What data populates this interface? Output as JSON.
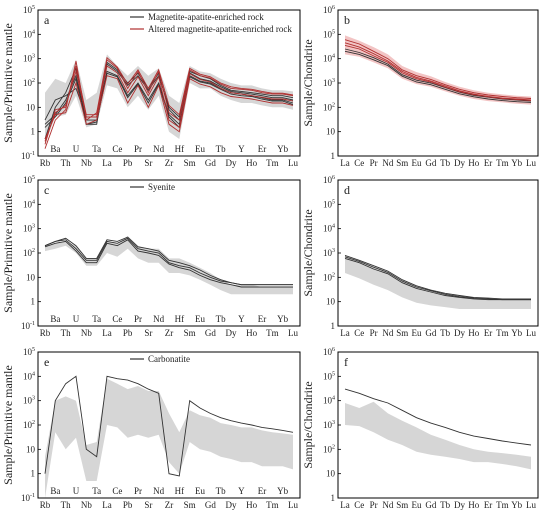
{
  "chart_data": [
    {
      "id": "a",
      "letter": "a",
      "type": "line",
      "scale": "log",
      "ylabel": "Sample/Primitive mantle",
      "ylim_exp": [
        -1,
        5
      ],
      "x_bottom": [
        "Rb",
        "Th",
        "Nb",
        "La",
        "Pb",
        "Sr",
        "Zr",
        "Sm",
        "Gd",
        "Dy",
        "Ho",
        "Tm",
        "Lu"
      ],
      "x_top": [
        "Ba",
        "U",
        "Ta",
        "Ce",
        "Pr",
        "Nd",
        "Hf",
        "Eu",
        "Tb",
        "Y",
        "Er",
        "Yb"
      ],
      "categories": [
        "Rb",
        "Ba",
        "Th",
        "U",
        "Nb",
        "Ta",
        "La",
        "Ce",
        "Pb",
        "Pr",
        "Sr",
        "Nd",
        "Zr",
        "Hf",
        "Sm",
        "Eu",
        "Gd",
        "Tb",
        "Dy",
        "Y",
        "Ho",
        "Er",
        "Tm",
        "Yb",
        "Lu"
      ],
      "band": {
        "lower": [
          0.3,
          4,
          5,
          30,
          1.5,
          2,
          80,
          60,
          10,
          30,
          8,
          30,
          1,
          0.5,
          100,
          60,
          60,
          30,
          20,
          15,
          15,
          12,
          10,
          10,
          8
        ],
        "upper": [
          40,
          150,
          100,
          900,
          20,
          40,
          1500,
          500,
          200,
          500,
          200,
          400,
          30,
          15,
          500,
          300,
          250,
          150,
          100,
          80,
          80,
          60,
          50,
          50,
          45
        ],
        "color": "#d6d6d6"
      },
      "series": [
        {
          "name": "Magnetite-apatite-enriched rock",
          "color": "#333333",
          "values": [
            2,
            5,
            20,
            200,
            3,
            3,
            300,
            200,
            30,
            100,
            20,
            100,
            5,
            2,
            200,
            120,
            100,
            60,
            40,
            35,
            30,
            25,
            20,
            20,
            15
          ]
        },
        {
          "name": "Magnetite-apatite-enriched rock",
          "color": "#333333",
          "values": [
            1.5,
            4,
            15,
            150,
            2,
            2.5,
            250,
            180,
            25,
            90,
            15,
            90,
            4,
            1.5,
            180,
            110,
            90,
            55,
            35,
            30,
            28,
            22,
            18,
            18,
            13
          ]
        },
        {
          "name": "Magnetite-apatite-enriched rock",
          "color": "#333333",
          "values": [
            3,
            20,
            30,
            60,
            4,
            4,
            600,
            300,
            80,
            200,
            50,
            200,
            10,
            4,
            300,
            200,
            150,
            80,
            50,
            45,
            40,
            35,
            30,
            30,
            25
          ]
        },
        {
          "name": "Magnetite-apatite-enriched rock",
          "color": "#333333",
          "values": [
            0.5,
            10,
            40,
            400,
            2,
            2,
            700,
            350,
            100,
            250,
            60,
            250,
            8,
            3,
            260,
            150,
            120,
            70,
            45,
            40,
            35,
            30,
            25,
            25,
            20
          ]
        },
        {
          "name": "Altered magnetite-apatite-enriched rock",
          "color": "#b03030",
          "values": [
            0.3,
            8,
            10,
            500,
            5,
            5,
            900,
            400,
            60,
            300,
            40,
            300,
            6,
            3,
            350,
            200,
            160,
            90,
            60,
            55,
            50,
            40,
            35,
            35,
            30
          ]
        },
        {
          "name": "Altered magnetite-apatite-enriched rock",
          "color": "#b03030",
          "values": [
            0.4,
            6,
            12,
            300,
            4,
            4,
            500,
            260,
            40,
            180,
            30,
            180,
            3,
            1.5,
            240,
            140,
            110,
            60,
            40,
            35,
            30,
            26,
            22,
            22,
            18
          ]
        },
        {
          "name": "Altered magnetite-apatite-enriched rock",
          "color": "#b03030",
          "values": [
            0.2,
            3,
            8,
            800,
            3,
            6,
            1100,
            450,
            90,
            350,
            60,
            350,
            12,
            5,
            400,
            230,
            180,
            100,
            70,
            60,
            55,
            45,
            38,
            38,
            32
          ]
        },
        {
          "name": "Altered magnetite-apatite-enriched rock",
          "color": "#b03030",
          "values": [
            0.5,
            5,
            6,
            100,
            2,
            3,
            200,
            150,
            15,
            80,
            10,
            80,
            2,
            1,
            150,
            90,
            70,
            40,
            28,
            25,
            22,
            18,
            15,
            15,
            12
          ]
        }
      ],
      "legend": [
        {
          "label": "Magnetite-apatite-enriched rock",
          "color": "#333333"
        },
        {
          "label": "Altered magnetite-apatite-enriched rock",
          "color": "#b03030"
        }
      ]
    },
    {
      "id": "b",
      "letter": "b",
      "type": "line",
      "scale": "log",
      "ylabel": "Sample/Chondrite",
      "ylim_exp": [
        0,
        6
      ],
      "x_bottom": [
        "La",
        "Ce",
        "Pr",
        "Nd",
        "Sm",
        "Eu",
        "Gd",
        "Tb",
        "Dy",
        "Ho",
        "Er",
        "Tm",
        "Yb",
        "Lu"
      ],
      "x_top": [],
      "categories": [
        "La",
        "Ce",
        "Pr",
        "Nd",
        "Sm",
        "Eu",
        "Gd",
        "Tb",
        "Dy",
        "Ho",
        "Er",
        "Tm",
        "Yb",
        "Lu"
      ],
      "band": {
        "lower": [
          15000,
          12000,
          7000,
          4000,
          1500,
          900,
          700,
          450,
          300,
          220,
          180,
          160,
          140,
          130
        ],
        "upper": [
          90000,
          55000,
          30000,
          15000,
          5000,
          2800,
          1900,
          1100,
          700,
          500,
          400,
          340,
          300,
          280
        ],
        "color": "#f2c4c4"
      },
      "series": [
        {
          "name": "",
          "color": "#333333",
          "values": [
            25000,
            18000,
            11000,
            6000,
            2200,
            1300,
            1000,
            650,
            420,
            310,
            260,
            220,
            200,
            180
          ]
        },
        {
          "name": "",
          "color": "#333333",
          "values": [
            20000,
            15000,
            9000,
            5200,
            1900,
            1100,
            850,
            550,
            360,
            270,
            220,
            190,
            170,
            160
          ]
        },
        {
          "name": "",
          "color": "#b03030",
          "values": [
            60000,
            40000,
            20000,
            10000,
            3500,
            2000,
            1400,
            850,
            550,
            400,
            320,
            280,
            250,
            230
          ]
        },
        {
          "name": "",
          "color": "#b03030",
          "values": [
            45000,
            30000,
            16000,
            8000,
            3000,
            1700,
            1200,
            750,
            480,
            350,
            280,
            240,
            220,
            200
          ]
        },
        {
          "name": "",
          "color": "#b03030",
          "values": [
            35000,
            25000,
            13000,
            7000,
            2600,
            1500,
            1100,
            680,
            440,
            330,
            270,
            230,
            210,
            190
          ]
        }
      ],
      "legend": []
    },
    {
      "id": "c",
      "letter": "c",
      "type": "line",
      "scale": "log",
      "ylabel": "Sample/Primitive mantle",
      "ylim_exp": [
        -1,
        5
      ],
      "x_bottom": [
        "Rb",
        "Th",
        "Nb",
        "La",
        "Pb",
        "Sr",
        "Zr",
        "Sm",
        "Gd",
        "Dy",
        "Ho",
        "Tm",
        "Lu"
      ],
      "x_top": [
        "Ba",
        "U",
        "Ta",
        "Ce",
        "Pr",
        "Nd",
        "Hf",
        "Eu",
        "Tb",
        "Y",
        "Er",
        "Yb"
      ],
      "categories": [
        "Rb",
        "Ba",
        "Th",
        "U",
        "Nb",
        "Ta",
        "La",
        "Ce",
        "Pb",
        "Pr",
        "Sr",
        "Nd",
        "Zr",
        "Hf",
        "Sm",
        "Eu",
        "Gd",
        "Tb",
        "Dy",
        "Y",
        "Ho",
        "Er",
        "Tm",
        "Yb",
        "Lu"
      ],
      "band": {
        "lower": [
          120,
          150,
          200,
          100,
          30,
          30,
          100,
          70,
          150,
          60,
          40,
          40,
          15,
          15,
          12,
          8,
          5,
          3,
          2,
          2,
          2,
          2,
          2,
          2,
          2
        ],
        "upper": [
          200,
          250,
          300,
          200,
          60,
          60,
          300,
          250,
          500,
          200,
          150,
          150,
          60,
          60,
          40,
          25,
          15,
          8,
          5,
          5,
          5,
          4,
          4,
          4,
          4
        ],
        "color": "#d6d6d6"
      },
      "series": [
        {
          "name": "Syenite",
          "color": "#333333",
          "values": [
            200,
            300,
            350,
            150,
            50,
            50,
            300,
            250,
            400,
            150,
            120,
            100,
            40,
            30,
            25,
            15,
            10,
            7,
            6,
            5,
            5,
            5,
            5,
            5,
            5
          ]
        },
        {
          "name": "Syenite",
          "color": "#333333",
          "values": [
            180,
            250,
            300,
            120,
            40,
            40,
            250,
            200,
            350,
            120,
            100,
            80,
            35,
            25,
            20,
            12,
            8,
            6,
            5,
            4,
            4,
            4,
            4,
            4,
            4
          ]
        },
        {
          "name": "Syenite",
          "color": "#333333",
          "values": [
            200,
            300,
            400,
            200,
            60,
            60,
            350,
            300,
            450,
            180,
            150,
            120,
            50,
            40,
            30,
            20,
            12,
            8,
            6,
            5,
            5,
            5,
            5,
            5,
            5
          ]
        }
      ],
      "legend": [
        {
          "label": "Syenite",
          "color": "#333333"
        }
      ]
    },
    {
      "id": "d",
      "letter": "d",
      "type": "line",
      "scale": "log",
      "ylabel": "Sample/Chondrite",
      "ylim_exp": [
        0,
        6
      ],
      "x_bottom": [
        "La",
        "Ce",
        "Pr",
        "Nd",
        "Sm",
        "Eu",
        "Gd",
        "Tb",
        "Dy",
        "Ho",
        "Er",
        "Tm",
        "Yb",
        "Lu"
      ],
      "x_top": [],
      "categories": [
        "La",
        "Ce",
        "Pr",
        "Nd",
        "Sm",
        "Eu",
        "Gd",
        "Tb",
        "Dy",
        "Ho",
        "Er",
        "Tm",
        "Yb",
        "Lu"
      ],
      "band": {
        "lower": [
          150,
          90,
          50,
          30,
          15,
          9,
          7,
          6,
          5,
          5,
          5,
          5,
          5,
          5
        ],
        "upper": [
          700,
          400,
          250,
          150,
          70,
          40,
          25,
          20,
          18,
          15,
          14,
          13,
          13,
          13
        ],
        "color": "#d6d6d6"
      },
      "series": [
        {
          "name": "",
          "color": "#333333",
          "values": [
            800,
            500,
            300,
            180,
            80,
            45,
            30,
            22,
            18,
            15,
            14,
            13,
            13,
            13
          ]
        },
        {
          "name": "",
          "color": "#333333",
          "values": [
            600,
            400,
            220,
            140,
            60,
            35,
            25,
            18,
            15,
            13,
            12,
            12,
            12,
            12
          ]
        },
        {
          "name": "",
          "color": "#333333",
          "values": [
            700,
            450,
            260,
            160,
            70,
            40,
            28,
            20,
            16,
            14,
            13,
            12,
            12,
            12
          ]
        }
      ],
      "legend": []
    },
    {
      "id": "e",
      "letter": "e",
      "type": "line",
      "scale": "log",
      "ylabel": "Sample/Primitive mantle",
      "ylim_exp": [
        -1,
        5
      ],
      "x_bottom": [
        "Rb",
        "Th",
        "Nb",
        "La",
        "Pb",
        "Sr",
        "Zr",
        "Sm",
        "Gd",
        "Dy",
        "Ho",
        "Tm",
        "Lu"
      ],
      "x_top": [
        "Ba",
        "U",
        "Ta",
        "Ce",
        "Pr",
        "Nd",
        "Hf",
        "Eu",
        "Tb",
        "Y",
        "Er",
        "Yb"
      ],
      "categories": [
        "Rb",
        "Ba",
        "Th",
        "U",
        "Nb",
        "Ta",
        "La",
        "Ce",
        "Pb",
        "Pr",
        "Sr",
        "Nd",
        "Zr",
        "Hf",
        "Sm",
        "Eu",
        "Gd",
        "Tb",
        "Dy",
        "Y",
        "Ho",
        "Er",
        "Tm",
        "Yb",
        "Lu"
      ],
      "band": {
        "lower": [
          0.1,
          50,
          10,
          30,
          0.5,
          0.5,
          100,
          80,
          30,
          40,
          30,
          40,
          3,
          1,
          20,
          10,
          8,
          5,
          4,
          3,
          3,
          2,
          2,
          2,
          1.5
        ],
        "upper": [
          5,
          1000,
          1500,
          1000,
          15,
          20,
          8000,
          5000,
          3000,
          4000,
          2500,
          2500,
          300,
          50,
          400,
          250,
          200,
          120,
          100,
          80,
          80,
          60,
          50,
          45,
          40
        ],
        "color": "#d6d6d6"
      },
      "series": [
        {
          "name": "Carbonatite",
          "color": "#333333",
          "values": [
            1,
            1000,
            5000,
            10000,
            10,
            5,
            10000,
            8000,
            7000,
            5000,
            3000,
            2000,
            1,
            0.8,
            1000,
            500,
            300,
            200,
            150,
            120,
            100,
            80,
            70,
            60,
            50
          ]
        }
      ],
      "legend": [
        {
          "label": "Carbonatite",
          "color": "#333333"
        }
      ]
    },
    {
      "id": "f",
      "letter": "f",
      "type": "line",
      "scale": "log",
      "ylabel": "Sample/Chondrite",
      "ylim_exp": [
        0,
        6
      ],
      "x_bottom": [
        "La",
        "Ce",
        "Pr",
        "Nd",
        "Sm",
        "Eu",
        "Gd",
        "Tb",
        "Dy",
        "Ho",
        "Er",
        "Tm",
        "Yb",
        "Lu"
      ],
      "x_top": [],
      "categories": [
        "La",
        "Ce",
        "Pr",
        "Nd",
        "Sm",
        "Eu",
        "Gd",
        "Tb",
        "Dy",
        "Ho",
        "Er",
        "Tm",
        "Yb",
        "Lu"
      ],
      "band": {
        "lower": [
          1000,
          900,
          500,
          250,
          150,
          80,
          60,
          50,
          40,
          30,
          30,
          25,
          20,
          15
        ],
        "upper": [
          8000,
          5000,
          9000,
          3000,
          1500,
          800,
          400,
          250,
          150,
          100,
          80,
          70,
          60,
          50
        ],
        "color": "#d6d6d6"
      },
      "series": [
        {
          "name": "",
          "color": "#333333",
          "values": [
            30000,
            20000,
            12000,
            8000,
            4000,
            2000,
            1200,
            800,
            500,
            350,
            280,
            220,
            180,
            150
          ]
        }
      ],
      "legend": []
    }
  ]
}
